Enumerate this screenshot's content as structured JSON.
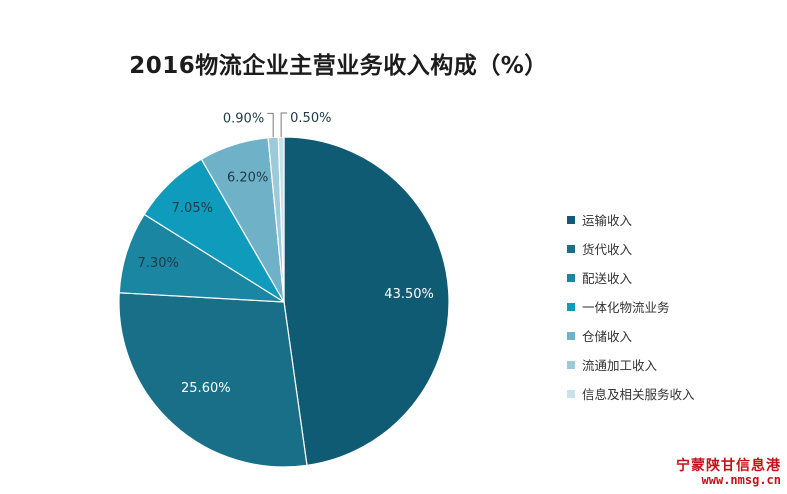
{
  "chart_data": {
    "type": "pie",
    "title": "2016物流企业主营业务收入构成（%）",
    "slices": [
      {
        "name": "运输收入",
        "value": 43.5,
        "label": "43.50%",
        "color": "#0f5b73"
      },
      {
        "name": "货代收入",
        "value": 25.6,
        "label": "25.60%",
        "color": "#196f88"
      },
      {
        "name": "配送收入",
        "value": 7.3,
        "label": "7.30%",
        "color": "#1a86a2"
      },
      {
        "name": "一体化物流业务",
        "value": 7.05,
        "label": "7.05%",
        "color": "#0f9cbc"
      },
      {
        "name": "仓储收入",
        "value": 6.2,
        "label": "6.20%",
        "color": "#6fb2c8"
      },
      {
        "name": "流通加工收入",
        "value": 0.9,
        "label": "0.90%",
        "color": "#9ccad8"
      },
      {
        "name": "信息及相关服务收入",
        "value": 0.5,
        "label": "0.50%",
        "color": "#c8e1ea"
      }
    ]
  },
  "watermark": {
    "line1": "宁蒙陕甘信息港",
    "line2": "www.nmsg.cn",
    "color": "#c8101a"
  }
}
